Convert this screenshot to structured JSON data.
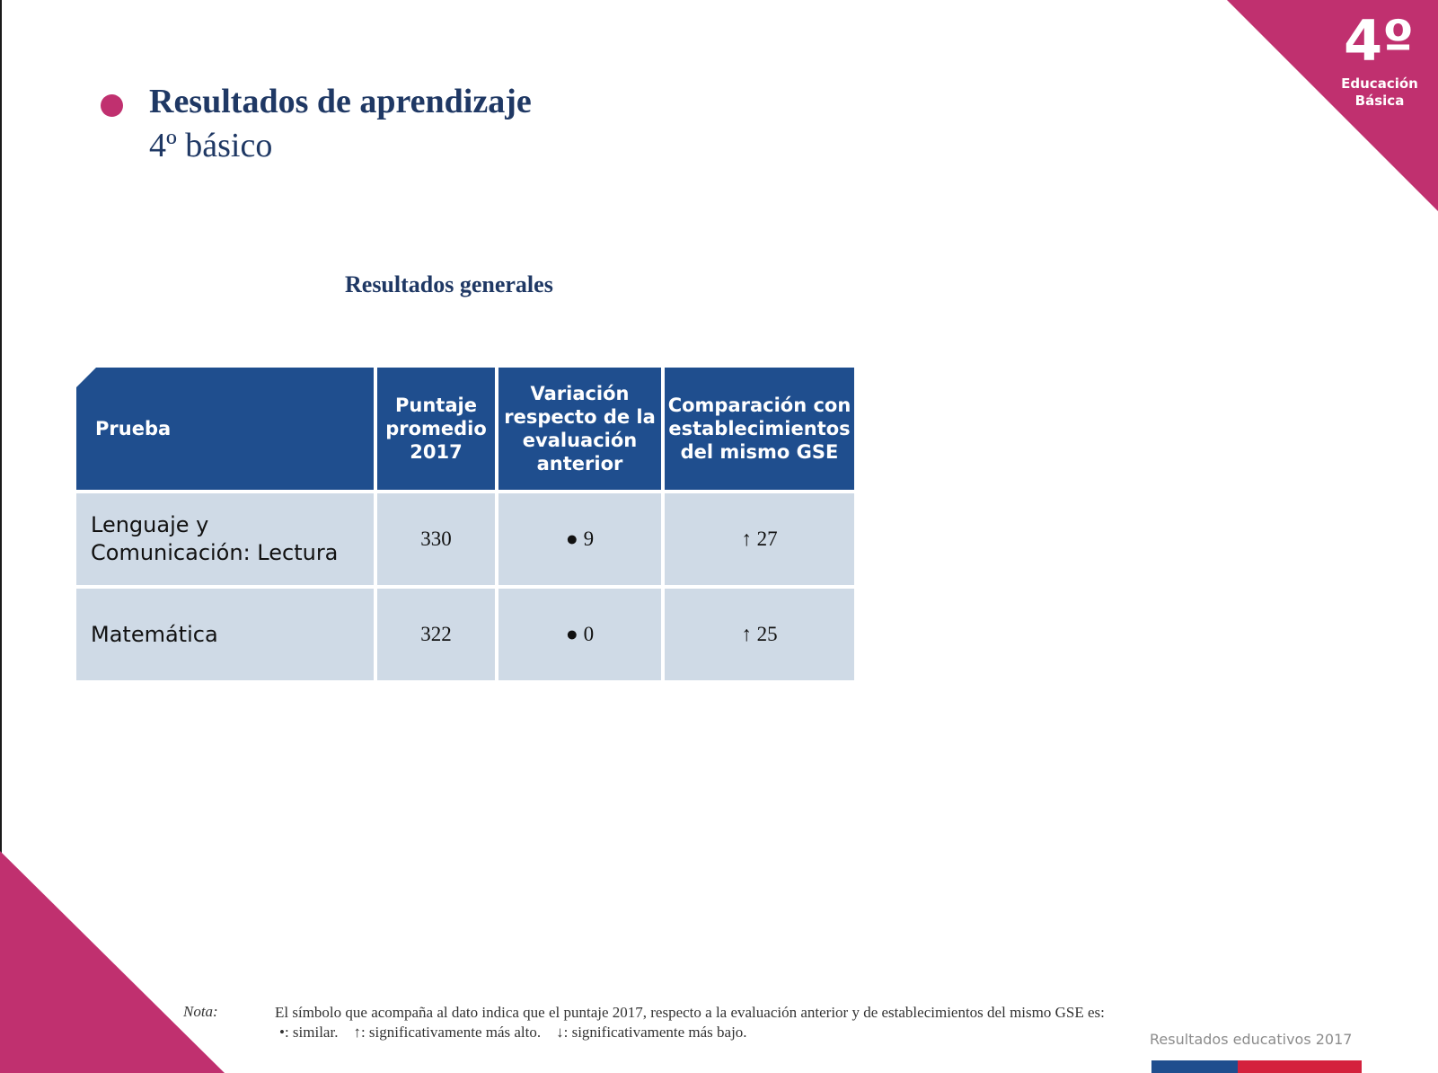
{
  "badge": {
    "grade": "4º",
    "label_line1": "Educación",
    "label_line2": "Básica"
  },
  "header": {
    "title": "Resultados de aprendizaje",
    "subtitle": "4º básico"
  },
  "section": {
    "title": "Resultados generales"
  },
  "table": {
    "headers": [
      "Prueba",
      "Puntaje promedio 2017",
      "Variación respecto de la evaluación anterior",
      "Comparación con establecimientos del mismo GSE"
    ],
    "rows": [
      {
        "prueba": "Lenguaje y Comunicación: Lectura",
        "puntaje": "330",
        "variacion": "● 9",
        "comparacion": "↑ 27"
      },
      {
        "prueba": "Matemática",
        "puntaje": "322",
        "variacion": "● 0",
        "comparacion": "↑ 25"
      }
    ]
  },
  "nota": {
    "label": "Nota:",
    "text": "El símbolo que acompaña al dato indica que el puntaje 2017, respecto a la evaluación anterior y de establecimientos del mismo GSE es:",
    "legend": "•: similar.    ↑: significativamente más alto.    ↓: significativamente más bajo."
  },
  "footer": {
    "brand": "Resultados educativos 2017"
  },
  "colors": {
    "accent_magenta": "#c0306f",
    "header_blue": "#1f4e8e",
    "title_navy": "#1f3864",
    "cell_light_blue": "#cfdae6",
    "flag_red": "#d4213d"
  }
}
